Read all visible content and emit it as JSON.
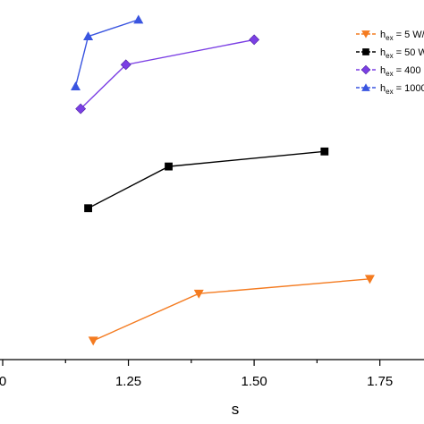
{
  "chart_data": {
    "type": "line",
    "xlabel": "s",
    "xlim": [
      1.0,
      1.9
    ],
    "ylim": [
      0,
      1
    ],
    "x_ticks": [
      {
        "value": 1.0,
        "label": "0"
      },
      {
        "value": 1.25,
        "label": "1.25"
      },
      {
        "value": 1.5,
        "label": "1.50"
      },
      {
        "value": 1.75,
        "label": "1.75"
      }
    ],
    "grid": false,
    "legend_position": "top-right",
    "series": [
      {
        "name": "h_ex = 5 W/...",
        "legend_main": "h",
        "legend_sub": "ex",
        "legend_rest": " = 5 W/",
        "color": "#f47b20",
        "marker": "triangle-down",
        "x": [
          1.18,
          1.39,
          1.73
        ],
        "y": [
          0.038,
          0.179,
          0.223
        ]
      },
      {
        "name": "h_ex = 50 W...",
        "legend_main": "h",
        "legend_sub": "ex",
        "legend_rest": " = 50 W",
        "color": "#000000",
        "marker": "square",
        "x": [
          1.17,
          1.33,
          1.64
        ],
        "y": [
          0.435,
          0.56,
          0.605
        ]
      },
      {
        "name": "h_ex = 400 ...",
        "legend_main": "h",
        "legend_sub": "ex",
        "legend_rest": " = 400",
        "color": "#7b3fe4",
        "marker": "diamond",
        "x": [
          1.155,
          1.245,
          1.5
        ],
        "y": [
          0.733,
          0.865,
          0.94
        ]
      },
      {
        "name": "h_ex = 1000...",
        "legend_main": "h",
        "legend_sub": "ex",
        "legend_rest": " = 1000",
        "color": "#3a55e0",
        "marker": "triangle-up",
        "x": [
          1.145,
          1.17,
          1.27
        ],
        "y": [
          0.8,
          0.95,
          1.0
        ]
      }
    ]
  }
}
